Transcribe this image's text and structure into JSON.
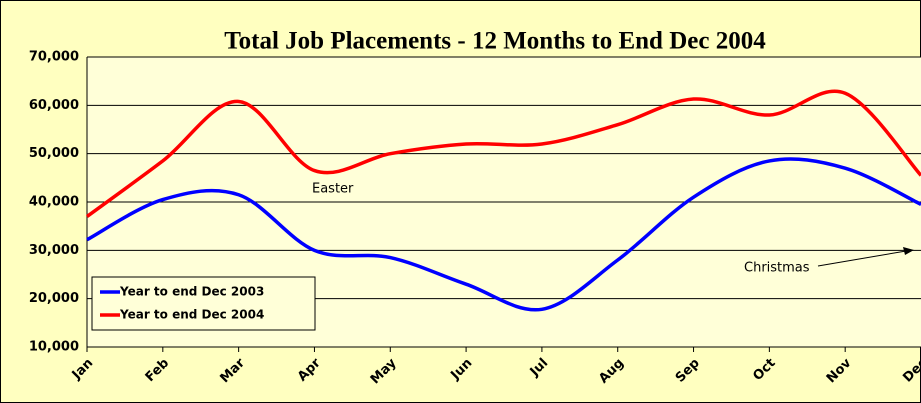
{
  "chart_data": {
    "type": "line",
    "title": "Total Job Placements - 12 Months to End Dec 2004",
    "categories": [
      "Jan",
      "Feb",
      "Mar",
      "Apr",
      "May",
      "Jun",
      "Jul",
      "Aug",
      "Sep",
      "Oct",
      "Nov",
      "Dec"
    ],
    "series": [
      {
        "name": "Year to end Dec 2003",
        "color": "#0000ff",
        "values": [
          32200,
          40500,
          41500,
          30000,
          28500,
          23000,
          17800,
          28000,
          41000,
          48500,
          47000,
          39500
        ]
      },
      {
        "name": "Year to end Dec 2004",
        "color": "#ff0000",
        "values": [
          37000,
          48500,
          60800,
          46500,
          50000,
          52000,
          52000,
          56000,
          61300,
          58000,
          62500,
          45500
        ]
      }
    ],
    "ylim": [
      10000,
      70000
    ],
    "yticks": [
      {
        "value": 10000,
        "label": "10,000"
      },
      {
        "value": 20000,
        "label": "20,000"
      },
      {
        "value": 30000,
        "label": "30,000"
      },
      {
        "value": 40000,
        "label": "40,000"
      },
      {
        "value": 50000,
        "label": "50,000"
      },
      {
        "value": 60000,
        "label": "60,000"
      },
      {
        "value": 70000,
        "label": "70,000"
      }
    ],
    "grid": true,
    "legend": "bottom-left",
    "annotations": [
      "Easter",
      "Christmas"
    ]
  }
}
